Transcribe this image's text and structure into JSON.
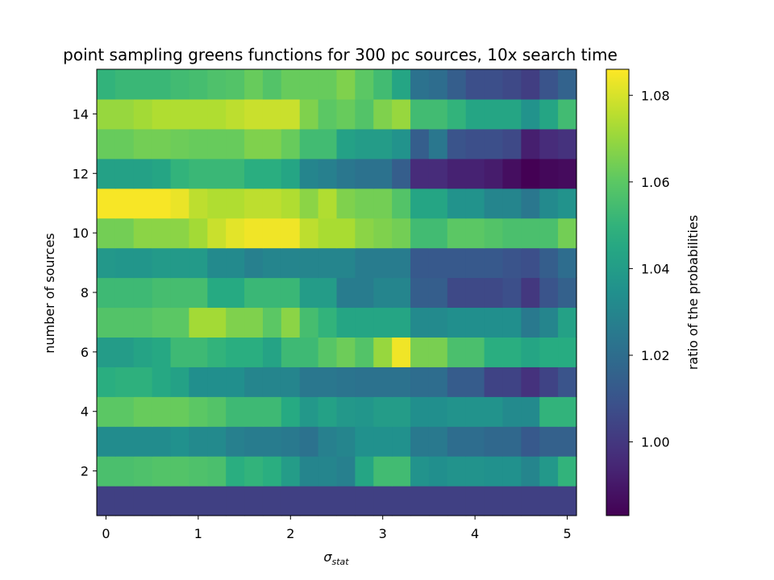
{
  "chart_data": {
    "type": "heatmap",
    "title": "point sampling greens functions for 300 pc sources, 10x search time",
    "xlabel": "σ",
    "xlabel_sub": "stat",
    "ylabel": "number of sources",
    "colorbar_label": "ratio of the probabilities",
    "colormap": "viridis",
    "grid": false,
    "colorbar_position": "right",
    "x_range": [
      -0.1,
      5.1
    ],
    "y_range": [
      0.5,
      15.5
    ],
    "x_centers": [
      0.0,
      0.2,
      0.4,
      0.6,
      0.8,
      1.0,
      1.2,
      1.4,
      1.6,
      1.8,
      2.0,
      2.2,
      2.4,
      2.6,
      2.8,
      3.0,
      3.2,
      3.4,
      3.6,
      3.8,
      4.0,
      4.2,
      4.4,
      4.6,
      4.8,
      5.0
    ],
    "y_rows": [
      1,
      2,
      3,
      4,
      5,
      6,
      7,
      8,
      9,
      10,
      11,
      12,
      13,
      14,
      15
    ],
    "color_range": [
      0.983,
      1.086
    ],
    "x_ticks": [
      0,
      1,
      2,
      3,
      4,
      5
    ],
    "y_ticks": [
      2,
      4,
      6,
      8,
      10,
      12,
      14
    ],
    "colorbar_ticks": [
      1.0,
      1.02,
      1.04,
      1.06,
      1.08
    ],
    "colorbar_tick_labels": [
      "1.00",
      "1.02",
      "1.04",
      "1.06",
      "1.08"
    ],
    "values": [
      [
        1.003,
        1.003,
        1.003,
        1.003,
        1.003,
        1.003,
        1.003,
        1.003,
        1.003,
        1.003,
        1.003,
        1.003,
        1.003,
        1.003,
        1.003,
        1.003,
        1.003,
        1.003,
        1.003,
        1.003,
        1.003,
        1.003,
        1.003,
        1.003,
        1.003,
        1.003
      ],
      [
        1.056,
        1.056,
        1.057,
        1.058,
        1.058,
        1.057,
        1.056,
        1.048,
        1.05,
        1.048,
        1.04,
        1.03,
        1.03,
        1.028,
        1.044,
        1.054,
        1.054,
        1.036,
        1.034,
        1.036,
        1.036,
        1.035,
        1.035,
        1.03,
        1.038,
        1.05
      ],
      [
        1.033,
        1.033,
        1.033,
        1.033,
        1.035,
        1.032,
        1.032,
        1.028,
        1.026,
        1.026,
        1.025,
        1.022,
        1.028,
        1.03,
        1.035,
        1.035,
        1.035,
        1.025,
        1.025,
        1.02,
        1.02,
        1.018,
        1.018,
        1.012,
        1.015,
        1.015
      ],
      [
        1.06,
        1.06,
        1.062,
        1.062,
        1.062,
        1.06,
        1.058,
        1.053,
        1.053,
        1.053,
        1.046,
        1.038,
        1.042,
        1.038,
        1.037,
        1.04,
        1.04,
        1.034,
        1.034,
        1.036,
        1.036,
        1.036,
        1.032,
        1.032,
        1.05,
        1.05
      ],
      [
        1.048,
        1.049,
        1.049,
        1.045,
        1.042,
        1.034,
        1.034,
        1.034,
        1.03,
        1.03,
        1.03,
        1.024,
        1.024,
        1.023,
        1.022,
        1.022,
        1.022,
        1.02,
        1.02,
        1.013,
        1.013,
        1.004,
        1.004,
        0.998,
        1.004,
        1.01
      ],
      [
        1.04,
        1.04,
        1.043,
        1.045,
        1.053,
        1.053,
        1.05,
        1.048,
        1.048,
        1.043,
        1.053,
        1.053,
        1.059,
        1.063,
        1.058,
        1.07,
        1.084,
        1.065,
        1.065,
        1.056,
        1.056,
        1.048,
        1.048,
        1.044,
        1.047,
        1.047
      ],
      [
        1.058,
        1.058,
        1.058,
        1.06,
        1.06,
        1.072,
        1.072,
        1.066,
        1.066,
        1.06,
        1.068,
        1.055,
        1.05,
        1.044,
        1.044,
        1.044,
        1.044,
        1.032,
        1.032,
        1.034,
        1.034,
        1.034,
        1.034,
        1.025,
        1.03,
        1.042
      ],
      [
        1.053,
        1.053,
        1.053,
        1.055,
        1.055,
        1.055,
        1.046,
        1.046,
        1.052,
        1.052,
        1.052,
        1.04,
        1.04,
        1.026,
        1.026,
        1.03,
        1.03,
        1.014,
        1.014,
        1.006,
        1.006,
        1.006,
        1.008,
        1.0,
        1.01,
        1.015
      ],
      [
        1.038,
        1.037,
        1.037,
        1.039,
        1.039,
        1.039,
        1.032,
        1.032,
        1.028,
        1.03,
        1.03,
        1.03,
        1.03,
        1.03,
        1.026,
        1.026,
        1.026,
        1.012,
        1.012,
        1.012,
        1.012,
        1.012,
        1.01,
        1.008,
        1.014,
        1.02
      ],
      [
        1.064,
        1.064,
        1.068,
        1.068,
        1.068,
        1.072,
        1.078,
        1.082,
        1.084,
        1.084,
        1.084,
        1.076,
        1.073,
        1.073,
        1.068,
        1.066,
        1.064,
        1.054,
        1.054,
        1.06,
        1.06,
        1.058,
        1.056,
        1.056,
        1.056,
        1.064
      ],
      [
        1.085,
        1.085,
        1.085,
        1.085,
        1.083,
        1.076,
        1.074,
        1.074,
        1.076,
        1.076,
        1.074,
        1.068,
        1.074,
        1.066,
        1.064,
        1.064,
        1.058,
        1.044,
        1.044,
        1.036,
        1.036,
        1.03,
        1.03,
        1.024,
        1.032,
        1.036
      ],
      [
        1.042,
        1.042,
        1.042,
        1.044,
        1.05,
        1.052,
        1.052,
        1.052,
        1.048,
        1.048,
        1.044,
        1.03,
        1.028,
        1.024,
        1.022,
        1.022,
        1.014,
        0.996,
        0.996,
        0.993,
        0.993,
        0.991,
        0.987,
        0.983,
        0.985,
        0.986
      ],
      [
        1.062,
        1.062,
        1.064,
        1.064,
        1.063,
        1.062,
        1.062,
        1.062,
        1.066,
        1.066,
        1.062,
        1.054,
        1.054,
        1.042,
        1.04,
        1.04,
        1.036,
        1.014,
        1.024,
        1.01,
        1.008,
        1.008,
        1.006,
        0.992,
        0.996,
        0.998
      ],
      [
        1.07,
        1.07,
        1.072,
        1.074,
        1.074,
        1.074,
        1.074,
        1.076,
        1.078,
        1.078,
        1.078,
        1.066,
        1.06,
        1.062,
        1.058,
        1.066,
        1.07,
        1.054,
        1.054,
        1.05,
        1.044,
        1.044,
        1.044,
        1.036,
        1.044,
        1.054
      ],
      [
        1.05,
        1.052,
        1.052,
        1.052,
        1.054,
        1.055,
        1.057,
        1.058,
        1.062,
        1.058,
        1.062,
        1.062,
        1.062,
        1.066,
        1.06,
        1.054,
        1.044,
        1.022,
        1.02,
        1.014,
        1.008,
        1.008,
        1.006,
        1.002,
        1.01,
        1.016
      ]
    ]
  }
}
